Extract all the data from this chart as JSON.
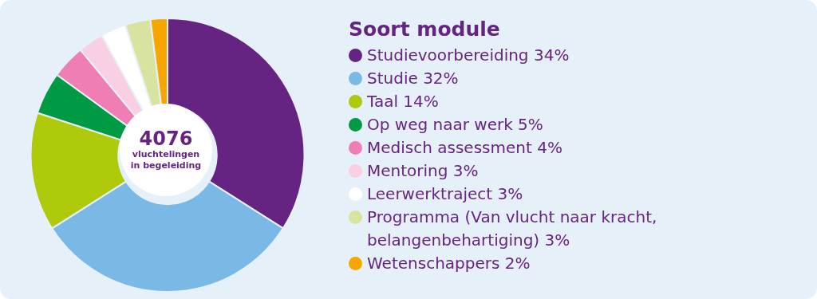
{
  "chart_data": {
    "type": "donut",
    "legend_title": "Soort module",
    "legend": "right",
    "categories": [
      "Studievoorbereiding",
      "Studie",
      "Taal",
      "Op weg naar werk",
      "Medisch assessment",
      "Mentoring",
      "Leerwerktraject",
      "Programma (Van vlucht naar kracht, belangenbehartiging)",
      "Wetenschappers"
    ],
    "values": [
      34,
      32,
      14,
      5,
      4,
      3,
      3,
      3,
      2
    ],
    "value_labels": [
      "34%",
      "32%",
      "14%",
      "5%",
      "4%",
      "3%",
      "3%",
      "3%",
      "2%"
    ],
    "colors": [
      "#662482",
      "#7ab8e6",
      "#afca0b",
      "#009a44",
      "#ee7eb4",
      "#f9cfe3",
      "#ffffff",
      "#d9e3a0",
      "#f7a600"
    ],
    "annotations": [
      "4076",
      "vluchtelingen in begeleiding"
    ]
  }
}
